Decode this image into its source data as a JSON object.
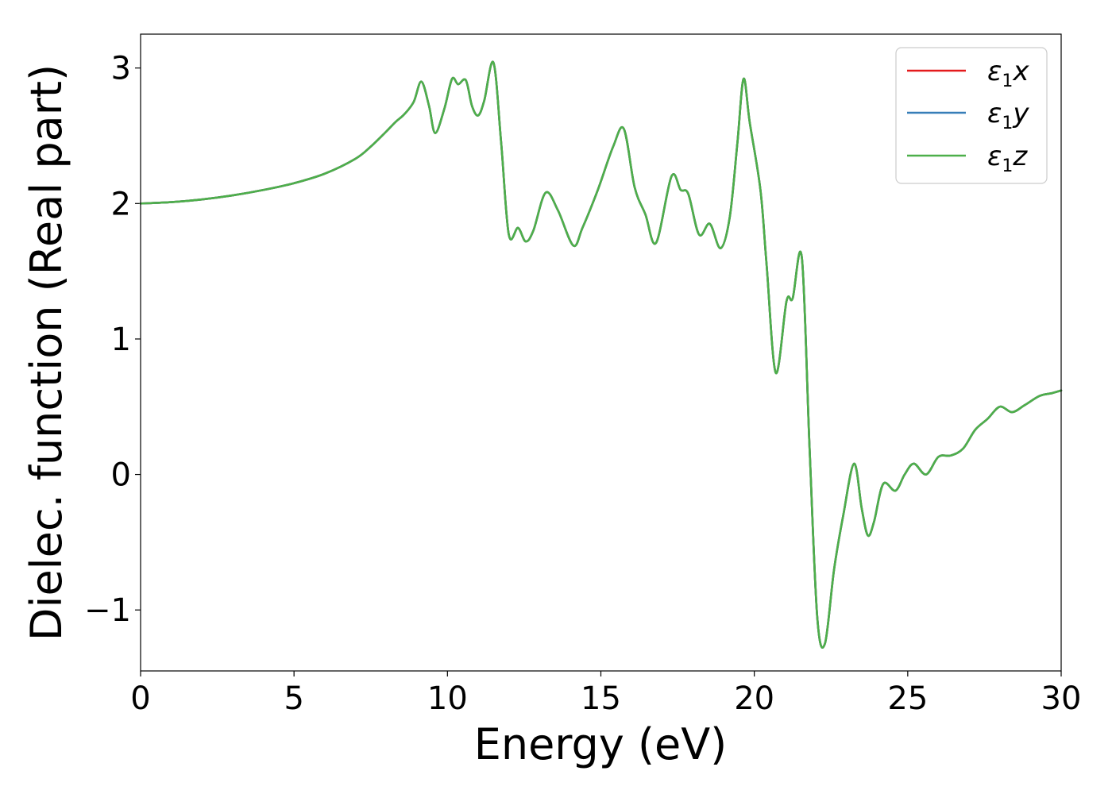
{
  "chart_data": {
    "type": "line",
    "xlabel": "Energy (eV)",
    "ylabel": "Dielec. function (Real part)",
    "xlim": [
      0,
      30
    ],
    "ylim": [
      -1.45,
      3.25
    ],
    "x_ticks": [
      0,
      5,
      10,
      15,
      20,
      25,
      30
    ],
    "y_ticks": [
      -1,
      0,
      1,
      2,
      3
    ],
    "x_tick_labels": [
      "0",
      "5",
      "10",
      "15",
      "20",
      "25",
      "30"
    ],
    "y_tick_labels": [
      "−1",
      "0",
      "1",
      "2",
      "3"
    ],
    "grid": false,
    "legend_position": "top-right",
    "colors": {
      "eps1x": "#e41a1c",
      "eps1y": "#377eb8",
      "eps1z": "#4daf4a"
    },
    "legend": [
      {
        "symbol": "ε",
        "subscript": "1",
        "axis": "x",
        "color": "#e41a1c"
      },
      {
        "symbol": "ε",
        "subscript": "1",
        "axis": "y",
        "color": "#377eb8"
      },
      {
        "symbol": "ε",
        "subscript": "1",
        "axis": "z",
        "color": "#4daf4a"
      }
    ],
    "x": [
      0,
      1,
      2,
      3,
      4,
      5,
      6,
      7,
      7.5,
      8,
      8.3,
      8.6,
      8.9,
      9.15,
      9.4,
      9.6,
      9.9,
      10.15,
      10.35,
      10.6,
      10.8,
      11.0,
      11.2,
      11.5,
      11.75,
      12.0,
      12.3,
      12.55,
      12.8,
      13.2,
      13.6,
      14.1,
      14.4,
      14.9,
      15.4,
      15.75,
      16.1,
      16.45,
      16.8,
      17.3,
      17.6,
      17.85,
      18.2,
      18.55,
      18.9,
      19.2,
      19.45,
      19.65,
      19.85,
      20.2,
      20.4,
      20.7,
      21.05,
      21.25,
      21.55,
      21.8,
      22.05,
      22.3,
      22.6,
      22.9,
      23.25,
      23.5,
      23.7,
      23.9,
      24.2,
      24.6,
      24.9,
      25.2,
      25.6,
      26.0,
      26.4,
      26.8,
      27.2,
      27.6,
      28.0,
      28.4,
      28.8,
      29.3,
      29.7,
      30.0
    ],
    "series": [
      {
        "name": "ε₁x",
        "values": [
          2.0,
          2.01,
          2.03,
          2.06,
          2.1,
          2.15,
          2.22,
          2.33,
          2.42,
          2.53,
          2.6,
          2.66,
          2.75,
          2.9,
          2.72,
          2.52,
          2.7,
          2.92,
          2.88,
          2.91,
          2.72,
          2.65,
          2.76,
          3.04,
          2.45,
          1.77,
          1.82,
          1.72,
          1.8,
          2.08,
          1.95,
          1.69,
          1.82,
          2.1,
          2.42,
          2.55,
          2.12,
          1.92,
          1.71,
          2.2,
          2.1,
          2.07,
          1.77,
          1.85,
          1.67,
          1.9,
          2.45,
          2.92,
          2.6,
          2.1,
          1.55,
          0.75,
          1.28,
          1.3,
          1.6,
          0.2,
          -1.05,
          -1.25,
          -0.7,
          -0.3,
          0.08,
          -0.25,
          -0.45,
          -0.35,
          -0.07,
          -0.12,
          0.0,
          0.08,
          0.0,
          0.13,
          0.14,
          0.19,
          0.33,
          0.41,
          0.5,
          0.46,
          0.51,
          0.58,
          0.6,
          0.62
        ]
      },
      {
        "name": "ε₁y",
        "values": [
          2.0,
          2.01,
          2.03,
          2.06,
          2.1,
          2.15,
          2.22,
          2.33,
          2.42,
          2.53,
          2.6,
          2.66,
          2.75,
          2.9,
          2.72,
          2.52,
          2.7,
          2.92,
          2.88,
          2.91,
          2.72,
          2.65,
          2.76,
          3.04,
          2.45,
          1.77,
          1.82,
          1.72,
          1.8,
          2.08,
          1.95,
          1.69,
          1.82,
          2.1,
          2.42,
          2.55,
          2.12,
          1.92,
          1.71,
          2.2,
          2.1,
          2.07,
          1.77,
          1.85,
          1.67,
          1.9,
          2.45,
          2.92,
          2.6,
          2.1,
          1.55,
          0.75,
          1.28,
          1.3,
          1.6,
          0.2,
          -1.05,
          -1.25,
          -0.7,
          -0.3,
          0.08,
          -0.25,
          -0.45,
          -0.35,
          -0.07,
          -0.12,
          0.0,
          0.08,
          0.0,
          0.13,
          0.14,
          0.19,
          0.33,
          0.41,
          0.5,
          0.46,
          0.51,
          0.58,
          0.6,
          0.62
        ]
      },
      {
        "name": "ε₁z",
        "values": [
          2.0,
          2.01,
          2.03,
          2.06,
          2.1,
          2.15,
          2.22,
          2.33,
          2.42,
          2.53,
          2.6,
          2.66,
          2.75,
          2.9,
          2.72,
          2.52,
          2.7,
          2.92,
          2.88,
          2.91,
          2.72,
          2.65,
          2.76,
          3.04,
          2.45,
          1.77,
          1.82,
          1.72,
          1.8,
          2.08,
          1.95,
          1.69,
          1.82,
          2.1,
          2.42,
          2.55,
          2.12,
          1.92,
          1.71,
          2.2,
          2.1,
          2.07,
          1.77,
          1.85,
          1.67,
          1.9,
          2.45,
          2.92,
          2.6,
          2.1,
          1.55,
          0.75,
          1.28,
          1.3,
          1.6,
          0.2,
          -1.05,
          -1.25,
          -0.7,
          -0.3,
          0.08,
          -0.25,
          -0.45,
          -0.35,
          -0.07,
          -0.12,
          0.0,
          0.08,
          0.0,
          0.13,
          0.14,
          0.19,
          0.33,
          0.41,
          0.5,
          0.46,
          0.51,
          0.58,
          0.6,
          0.62
        ]
      }
    ]
  }
}
